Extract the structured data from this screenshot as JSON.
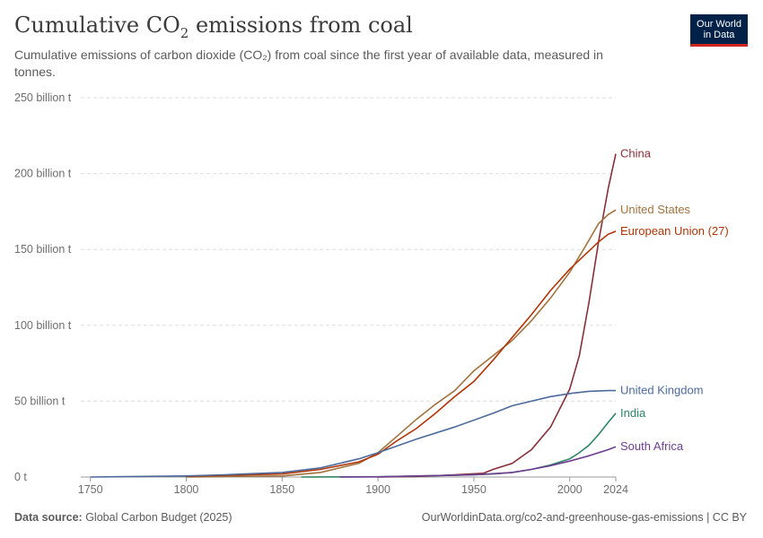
{
  "header": {
    "title_main": "Cumulative CO",
    "title_sub": "2",
    "title_end": " emissions from coal",
    "subtitle": "Cumulative emissions of carbon dioxide (CO₂) from coal since the first year of available data, measured in tonnes."
  },
  "logo": {
    "line1": "Our World",
    "line2": "in Data"
  },
  "footer": {
    "source_label": "Data source:",
    "source_text": " Global Carbon Budget (2025)",
    "link": "OurWorldinData.org/co2-and-greenhouse-gas-emissions | CC BY"
  },
  "chart_data": {
    "type": "line",
    "title": "Cumulative CO₂ emissions from coal",
    "xlim": [
      1745,
      2024
    ],
    "ylim": [
      0,
      250
    ],
    "y_unit": "billion t",
    "x_ticks": [
      {
        "value": 1750,
        "label": "1750"
      },
      {
        "value": 1800,
        "label": "1800"
      },
      {
        "value": 1850,
        "label": "1850"
      },
      {
        "value": 1900,
        "label": "1900"
      },
      {
        "value": 1950,
        "label": "1950"
      },
      {
        "value": 2000,
        "label": "2000"
      },
      {
        "value": 2024,
        "label": "2024"
      }
    ],
    "y_ticks": [
      {
        "value": 0,
        "label": "0 t"
      },
      {
        "value": 50,
        "label": "50 billion t"
      },
      {
        "value": 100,
        "label": "100 billion t"
      },
      {
        "value": 150,
        "label": "150 billion t"
      },
      {
        "value": 200,
        "label": "200 billion t"
      },
      {
        "value": 250,
        "label": "250 billion t"
      }
    ],
    "grid": true,
    "series": [
      {
        "name": "China",
        "color": "#883039",
        "points": [
          [
            1900,
            0
          ],
          [
            1920,
            0.3
          ],
          [
            1940,
            1.5
          ],
          [
            1955,
            2.5
          ],
          [
            1960,
            5
          ],
          [
            1970,
            9
          ],
          [
            1980,
            18
          ],
          [
            1990,
            33
          ],
          [
            2000,
            58
          ],
          [
            2005,
            80
          ],
          [
            2010,
            115
          ],
          [
            2015,
            155
          ],
          [
            2020,
            190
          ],
          [
            2024,
            213
          ]
        ]
      },
      {
        "name": "United States",
        "color": "#a2723e",
        "points": [
          [
            1800,
            0
          ],
          [
            1850,
            0.7
          ],
          [
            1870,
            3
          ],
          [
            1890,
            9
          ],
          [
            1900,
            16
          ],
          [
            1910,
            27
          ],
          [
            1920,
            38
          ],
          [
            1930,
            48
          ],
          [
            1940,
            57
          ],
          [
            1950,
            70
          ],
          [
            1960,
            80
          ],
          [
            1970,
            90
          ],
          [
            1980,
            103
          ],
          [
            1990,
            118
          ],
          [
            2000,
            135
          ],
          [
            2010,
            156
          ],
          [
            2015,
            167
          ],
          [
            2020,
            173
          ],
          [
            2024,
            176
          ]
        ]
      },
      {
        "name": "European Union (27)",
        "color": "#b13507",
        "points": [
          [
            1800,
            0.5
          ],
          [
            1850,
            2
          ],
          [
            1870,
            5
          ],
          [
            1890,
            10
          ],
          [
            1900,
            15
          ],
          [
            1910,
            24
          ],
          [
            1920,
            32
          ],
          [
            1930,
            42
          ],
          [
            1940,
            53
          ],
          [
            1950,
            63
          ],
          [
            1960,
            77
          ],
          [
            1970,
            92
          ],
          [
            1980,
            107
          ],
          [
            1990,
            123
          ],
          [
            2000,
            137
          ],
          [
            2010,
            149
          ],
          [
            2015,
            155
          ],
          [
            2020,
            160
          ],
          [
            2024,
            162
          ]
        ]
      },
      {
        "name": "United Kingdom",
        "color": "#4c6a9c",
        "points": [
          [
            1750,
            0
          ],
          [
            1800,
            0.7
          ],
          [
            1820,
            1.5
          ],
          [
            1850,
            3
          ],
          [
            1870,
            6
          ],
          [
            1890,
            12
          ],
          [
            1900,
            16
          ],
          [
            1920,
            25
          ],
          [
            1940,
            33
          ],
          [
            1960,
            42
          ],
          [
            1970,
            47
          ],
          [
            1980,
            50
          ],
          [
            1990,
            53
          ],
          [
            2000,
            55
          ],
          [
            2010,
            56.5
          ],
          [
            2020,
            57
          ],
          [
            2024,
            57
          ]
        ]
      },
      {
        "name": "India",
        "color": "#2c8465",
        "points": [
          [
            1860,
            0
          ],
          [
            1900,
            0.2
          ],
          [
            1950,
            1.5
          ],
          [
            1960,
            2
          ],
          [
            1970,
            3
          ],
          [
            1980,
            5
          ],
          [
            1990,
            8
          ],
          [
            2000,
            12
          ],
          [
            2005,
            16
          ],
          [
            2010,
            21
          ],
          [
            2015,
            28
          ],
          [
            2020,
            36
          ],
          [
            2024,
            42
          ]
        ]
      },
      {
        "name": "South Africa",
        "color": "#6d3e91",
        "points": [
          [
            1880,
            0
          ],
          [
            1900,
            0.1
          ],
          [
            1950,
            1.5
          ],
          [
            1960,
            2.2
          ],
          [
            1970,
            3
          ],
          [
            1980,
            5
          ],
          [
            1990,
            7.5
          ],
          [
            2000,
            10.5
          ],
          [
            2010,
            14
          ],
          [
            2020,
            18
          ],
          [
            2024,
            20
          ]
        ]
      }
    ]
  }
}
